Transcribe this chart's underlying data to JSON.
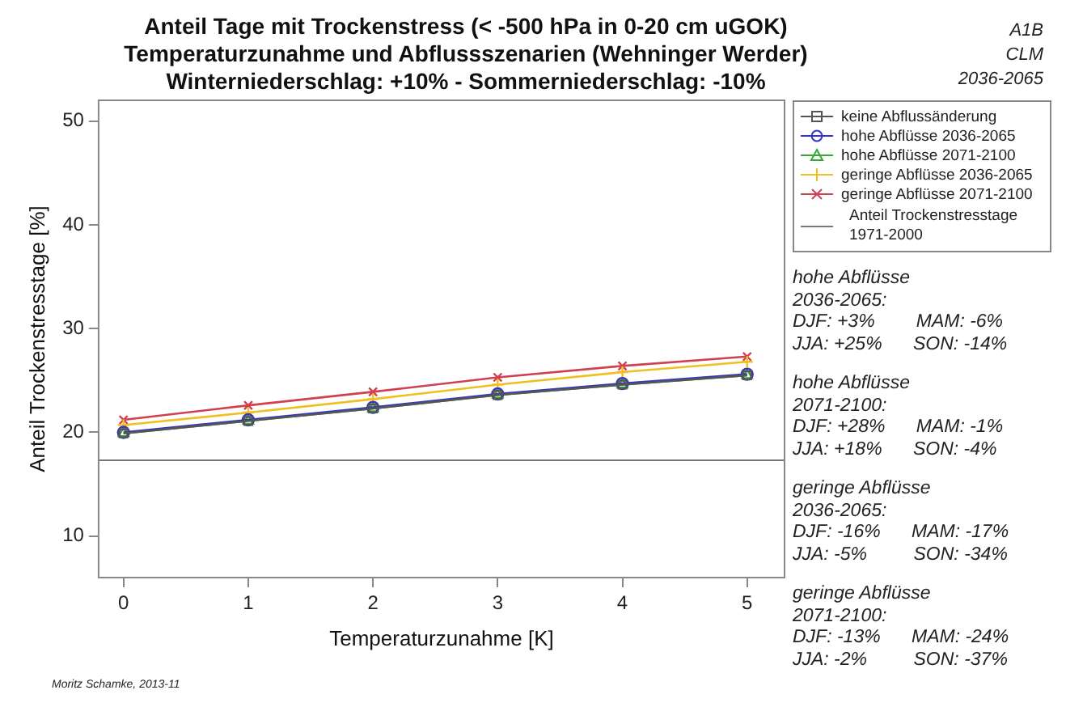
{
  "chart_data": {
    "type": "line",
    "title": "Anteil Tage mit Trockenstress (< -500 hPa in 0-20 cm uGOK)\nTemperaturzunahme und Abflussszenarien (Wehninger Werder)\nWinterniederschlag: +10%  -  Sommerniederschlag: -10%",
    "xlabel": "Temperaturzunahme [K]",
    "ylabel": "Anteil Trockenstresstage [%]",
    "x": [
      0,
      1,
      2,
      3,
      4,
      5
    ],
    "series": [
      {
        "name": "keine Abflussänderung",
        "color": "#555555",
        "marker": "square",
        "values": [
          19.9,
          21.1,
          22.3,
          23.6,
          24.6,
          25.5
        ]
      },
      {
        "name": "hohe Abflüsse 2036-2065",
        "color": "#3333cc",
        "marker": "circle",
        "values": [
          20.0,
          21.2,
          22.4,
          23.7,
          24.7,
          25.6
        ]
      },
      {
        "name": "hohe Abflüsse 2071-2100",
        "color": "#33aa33",
        "marker": "triangle",
        "values": [
          19.9,
          21.1,
          22.3,
          23.6,
          24.6,
          25.5
        ]
      },
      {
        "name": "geringe Abflüsse 2036-2065",
        "color": "#f0c020",
        "marker": "cross",
        "values": [
          20.7,
          21.9,
          23.2,
          24.6,
          25.8,
          26.8
        ]
      },
      {
        "name": "geringe Abflüsse 2071-2100",
        "color": "#d04050",
        "marker": "x",
        "values": [
          21.2,
          22.6,
          23.9,
          25.3,
          26.4,
          27.3
        ]
      }
    ],
    "ref_lines": [
      {
        "axis": "y",
        "value": 17.3,
        "label": "Anteil Trockenstresstage\n1971-2000",
        "color": "#777777",
        "line_style": "solid"
      }
    ],
    "xlim": [
      -0.2,
      5.3
    ],
    "xticks": [
      0,
      1,
      2,
      3,
      4,
      5
    ],
    "ylim": [
      6,
      52
    ],
    "yticks": [
      10,
      20,
      30,
      40,
      50
    ],
    "legend": "right",
    "line_style": "solid",
    "annotations": [
      "A1B",
      "CLM",
      "2036-2065",
      "hohe Abflüsse\n2036-2065:\nDJF: +3%        MAM: -6%\nJJA: +25%      SON: -14%",
      "hohe Abflüsse\n2071-2100:\nDJF: +28%      MAM: -1%\nJJA: +18%      SON: -4%",
      "geringe Abflüsse\n2036-2065:\nDJF: -16%      MAM: -17%\nJJA: -5%         SON: -34%",
      "geringe Abflüsse\n2071-2100:\nDJF: -13%      MAM: -24%\nJJA: -2%         SON: -37%",
      "Moritz Schamke, 2013-11"
    ]
  }
}
